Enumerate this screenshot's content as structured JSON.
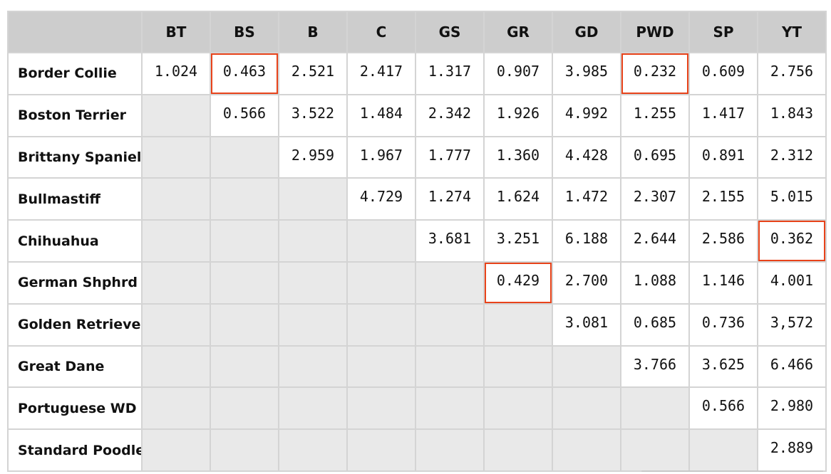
{
  "table": {
    "corner": "",
    "columns": [
      "BT",
      "BS",
      "B",
      "C",
      "GS",
      "GR",
      "GD",
      "PWD",
      "SP",
      "YT"
    ],
    "rows": [
      {
        "label": "Border Collie",
        "cells": [
          "1.024",
          "0.463",
          "2.521",
          "2.417",
          "1.317",
          "0.907",
          "3.985",
          "0.232",
          "0.609",
          "2.756"
        ]
      },
      {
        "label": "Boston Terrier",
        "cells": [
          "",
          "0.566",
          "3.522",
          "1.484",
          "2.342",
          "1.926",
          "4.992",
          "1.255",
          "1.417",
          "1.843"
        ]
      },
      {
        "label": "Brittany Spaniel",
        "cells": [
          "",
          "",
          "2.959",
          "1.967",
          "1.777",
          "1.360",
          "4.428",
          "0.695",
          "0.891",
          "2.312"
        ]
      },
      {
        "label": "Bullmastiff",
        "cells": [
          "",
          "",
          "",
          "4.729",
          "1.274",
          "1.624",
          "1.472",
          "2.307",
          "2.155",
          "5.015"
        ]
      },
      {
        "label": "Chihuahua",
        "cells": [
          "",
          "",
          "",
          "",
          "3.681",
          "3.251",
          "6.188",
          "2.644",
          "2.586",
          "0.362"
        ]
      },
      {
        "label": "German Shphrd",
        "cells": [
          "",
          "",
          "",
          "",
          "",
          "0.429",
          "2.700",
          "1.088",
          "1.146",
          "4.001"
        ]
      },
      {
        "label": "Golden Retriever",
        "cells": [
          "",
          "",
          "",
          "",
          "",
          "",
          "3.081",
          "0.685",
          "0.736",
          "3,572"
        ]
      },
      {
        "label": "Great Dane",
        "cells": [
          "",
          "",
          "",
          "",
          "",
          "",
          "",
          "3.766",
          "3.625",
          "6.466"
        ]
      },
      {
        "label": "Portuguese WD",
        "cells": [
          "",
          "",
          "",
          "",
          "",
          "",
          "",
          "",
          "0.566",
          "2.980"
        ]
      },
      {
        "label": "Standard Poodle",
        "cells": [
          "",
          "",
          "",
          "",
          "",
          "",
          "",
          "",
          "",
          "2.889"
        ]
      }
    ],
    "highlighted_cells": [
      {
        "row": "Border Collie",
        "column": "BS"
      },
      {
        "row": "Border Collie",
        "column": "PWD"
      },
      {
        "row": "Chihuahua",
        "column": "YT"
      },
      {
        "row": "German Shphrd",
        "column": "GR"
      }
    ],
    "colors": {
      "header_bg": "#cdcdcd",
      "empty_cell_bg": "#e9e9e9",
      "grid_line": "#d4d4d4",
      "highlight_border": "#e8431a"
    }
  }
}
